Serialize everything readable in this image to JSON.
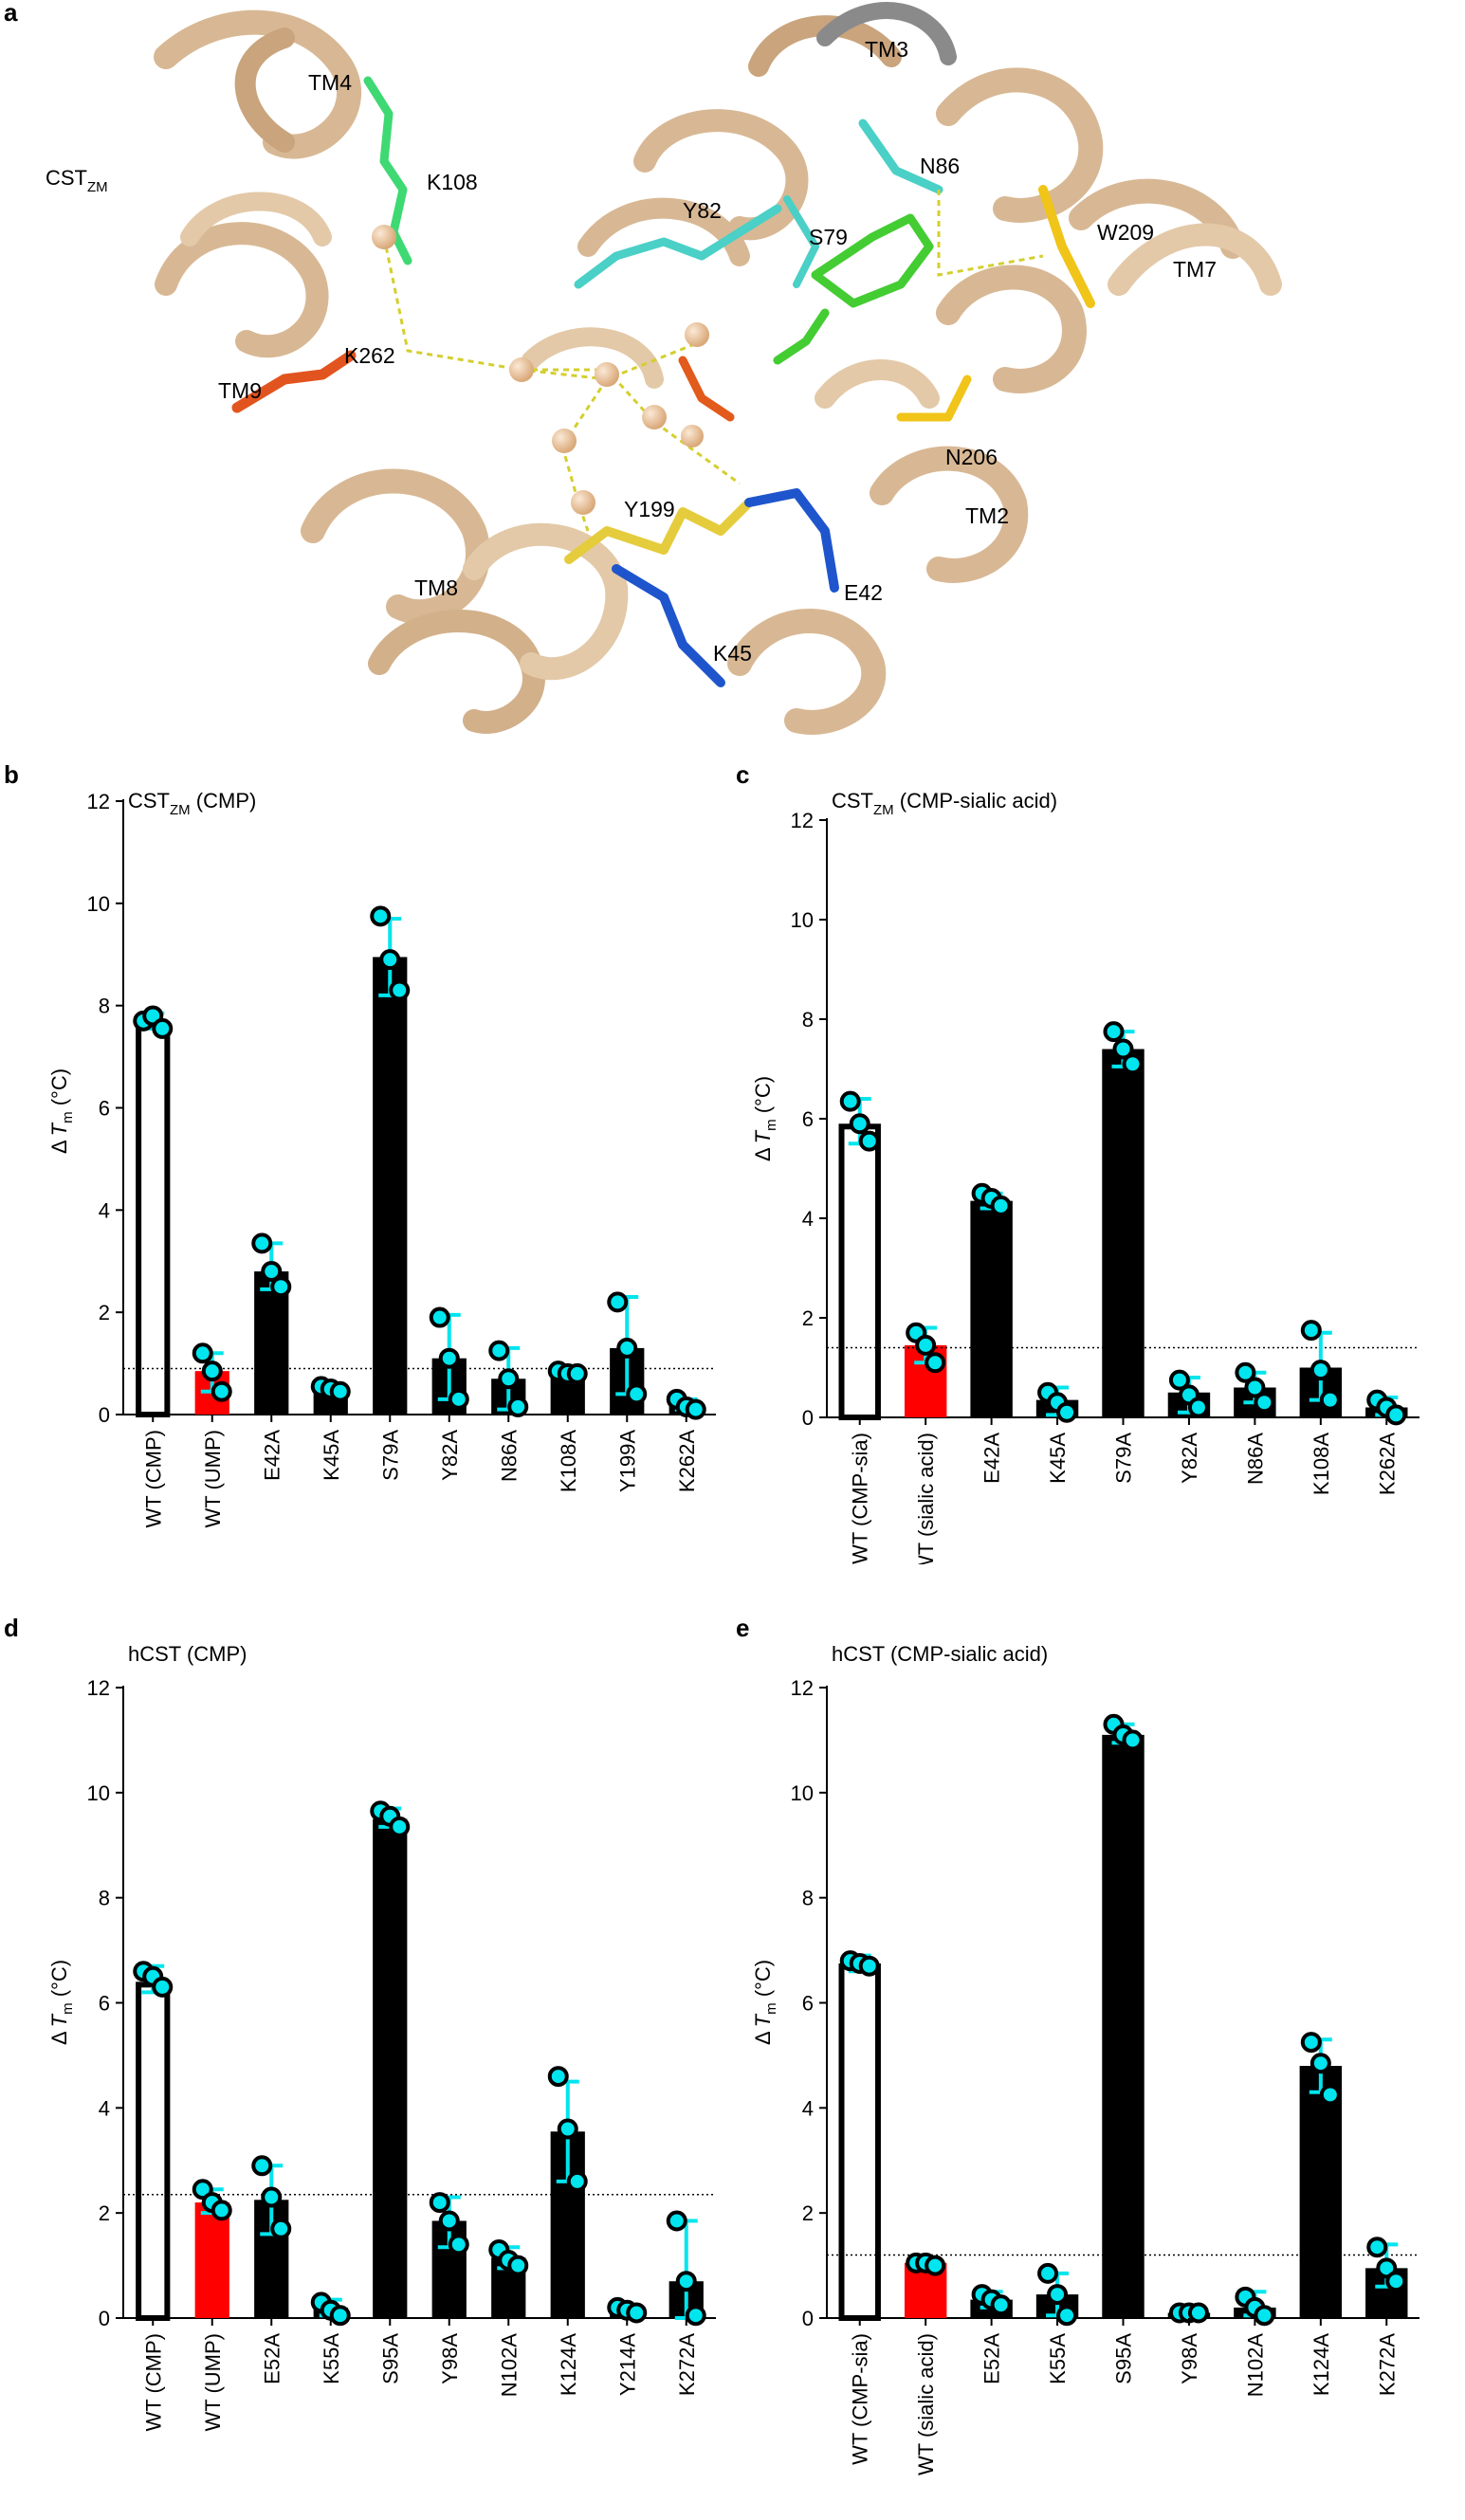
{
  "panel_a": {
    "letter": "a",
    "protein_label": {
      "main": "CST",
      "sub": "ZM"
    },
    "labels": {
      "tm4": "TM4",
      "k108": "K108",
      "tm3": "TM3",
      "n86": "N86",
      "y82": "Y82",
      "s79": "S79",
      "w209": "W209",
      "tm7": "TM7",
      "k262": "K262",
      "tm9": "TM9",
      "n206": "N206",
      "tm2": "TM2",
      "y199": "Y199",
      "tm8": "TM8",
      "e42": "E42",
      "k45": "K45"
    }
  },
  "colors": {
    "open_bar": "#ffffff",
    "red_bar": "#ff0000",
    "black_bar": "#000000",
    "error": "#00e5ee"
  },
  "chart_data": [
    {
      "letter": "b",
      "type": "bar",
      "title": "CST_ZM (CMP)",
      "ylabel": "ΔTm (°C)",
      "ylim": [
        0,
        12
      ],
      "yticks": [
        0,
        2,
        4,
        6,
        8,
        10,
        12
      ],
      "threshold": 0.9,
      "categories": [
        "WT (CMP)",
        "WT (UMP)",
        "E42A",
        "K45A",
        "S79A",
        "Y82A",
        "N86A",
        "K108A",
        "Y199A",
        "K262A"
      ],
      "values": [
        7.65,
        0.85,
        2.8,
        0.5,
        8.95,
        1.1,
        0.7,
        0.8,
        1.3,
        0.2
      ],
      "err_low": [
        7.55,
        0.45,
        2.45,
        0.45,
        8.2,
        0.3,
        0.1,
        0.75,
        0.4,
        0.1
      ],
      "err_high": [
        7.85,
        1.2,
        3.35,
        0.6,
        9.7,
        1.95,
        1.3,
        0.9,
        2.3,
        0.3
      ],
      "points": [
        [
          7.7,
          7.8,
          7.55
        ],
        [
          1.2,
          0.85,
          0.45
        ],
        [
          3.35,
          2.8,
          2.5
        ],
        [
          0.55,
          0.5,
          0.45
        ],
        [
          9.75,
          8.9,
          8.3
        ],
        [
          1.9,
          1.1,
          0.3
        ],
        [
          1.25,
          0.7,
          0.15
        ],
        [
          0.85,
          0.8,
          0.8
        ],
        [
          2.2,
          1.3,
          0.4
        ],
        [
          0.3,
          0.15,
          0.1
        ]
      ],
      "bar_styles": [
        "open",
        "red",
        "black",
        "black",
        "black",
        "black",
        "black",
        "black",
        "black",
        "black"
      ]
    },
    {
      "letter": "c",
      "type": "bar",
      "title": "CST_ZM (CMP-sialic acid)",
      "ylabel": "ΔTm (°C)",
      "ylim": [
        0,
        12
      ],
      "yticks": [
        0,
        2,
        4,
        6,
        8,
        10,
        12
      ],
      "threshold": 1.4,
      "categories": [
        "WT (CMP-sia)",
        "WT (sialic acid)",
        "E42A",
        "K45A",
        "S79A",
        "Y82A",
        "N86A",
        "K108A",
        "K262A"
      ],
      "values": [
        5.9,
        1.45,
        4.35,
        0.35,
        7.4,
        0.5,
        0.6,
        1.0,
        0.2
      ],
      "err_low": [
        5.5,
        1.1,
        4.2,
        0.05,
        7.05,
        0.1,
        0.3,
        0.35,
        0.05
      ],
      "err_high": [
        6.4,
        1.8,
        4.5,
        0.6,
        7.75,
        0.8,
        0.9,
        1.7,
        0.4
      ],
      "points": [
        [
          6.35,
          5.9,
          5.55
        ],
        [
          1.7,
          1.45,
          1.1
        ],
        [
          4.5,
          4.4,
          4.25
        ],
        [
          0.5,
          0.3,
          0.1
        ],
        [
          7.75,
          7.4,
          7.1
        ],
        [
          0.75,
          0.45,
          0.2
        ],
        [
          0.9,
          0.6,
          0.3
        ],
        [
          1.75,
          0.95,
          0.35
        ],
        [
          0.35,
          0.2,
          0.05
        ]
      ],
      "bar_styles": [
        "open",
        "red",
        "black",
        "black",
        "black",
        "black",
        "black",
        "black",
        "black"
      ]
    },
    {
      "letter": "d",
      "type": "bar",
      "title": "hCST (CMP)",
      "ylabel": "ΔTm (°C)",
      "ylim": [
        0,
        12
      ],
      "yticks": [
        0,
        2,
        4,
        6,
        8,
        10,
        12
      ],
      "threshold": 2.35,
      "categories": [
        "WT (CMP)",
        "WT (UMP)",
        "E52A",
        "K55A",
        "S95A",
        "Y98A",
        "N102A",
        "K124A",
        "Y214A",
        "K272A"
      ],
      "values": [
        6.4,
        2.2,
        2.25,
        0.2,
        9.5,
        1.85,
        1.15,
        3.55,
        0.15,
        0.7
      ],
      "err_low": [
        6.2,
        2.0,
        1.6,
        0.05,
        9.35,
        1.35,
        0.95,
        2.6,
        0.05,
        0.0
      ],
      "err_high": [
        6.7,
        2.45,
        2.9,
        0.35,
        9.7,
        2.3,
        1.35,
        4.5,
        0.25,
        1.85
      ],
      "points": [
        [
          6.6,
          6.5,
          6.3
        ],
        [
          2.45,
          2.2,
          2.05
        ],
        [
          2.9,
          2.3,
          1.7
        ],
        [
          0.3,
          0.15,
          0.05
        ],
        [
          9.65,
          9.55,
          9.35
        ],
        [
          2.2,
          1.85,
          1.4
        ],
        [
          1.3,
          1.1,
          1.0
        ],
        [
          4.6,
          3.6,
          2.6
        ],
        [
          0.2,
          0.15,
          0.1
        ],
        [
          1.85,
          0.7,
          0.05
        ]
      ],
      "bar_styles": [
        "open",
        "red",
        "black",
        "black",
        "black",
        "black",
        "black",
        "black",
        "black",
        "black"
      ]
    },
    {
      "letter": "e",
      "type": "bar",
      "title": "hCST (CMP-sialic acid)",
      "ylabel": "ΔTm (°C)",
      "ylim": [
        0,
        12
      ],
      "yticks": [
        0,
        2,
        4,
        6,
        8,
        10,
        12
      ],
      "threshold": 1.2,
      "categories": [
        "WT (CMP-sia)",
        "WT (sialic acid)",
        "E52A",
        "K55A",
        "S95A",
        "Y98A",
        "N102A",
        "K124A",
        "K272A"
      ],
      "values": [
        6.75,
        1.05,
        0.35,
        0.45,
        11.1,
        0.1,
        0.2,
        4.8,
        0.95
      ],
      "err_low": [
        6.6,
        0.95,
        0.2,
        0.05,
        10.95,
        0.05,
        0.05,
        4.3,
        0.6
      ],
      "err_high": [
        6.9,
        1.1,
        0.5,
        0.85,
        11.3,
        0.15,
        0.5,
        5.3,
        1.4
      ],
      "points": [
        [
          6.8,
          6.75,
          6.7
        ],
        [
          1.05,
          1.05,
          1.0
        ],
        [
          0.45,
          0.35,
          0.25
        ],
        [
          0.85,
          0.45,
          0.05
        ],
        [
          11.3,
          11.1,
          11.0
        ],
        [
          0.1,
          0.1,
          0.1
        ],
        [
          0.4,
          0.2,
          0.05
        ],
        [
          5.25,
          4.85,
          4.25
        ],
        [
          1.35,
          0.95,
          0.7
        ]
      ],
      "bar_styles": [
        "open",
        "red",
        "black",
        "black",
        "black",
        "black",
        "black",
        "black",
        "black"
      ]
    }
  ]
}
